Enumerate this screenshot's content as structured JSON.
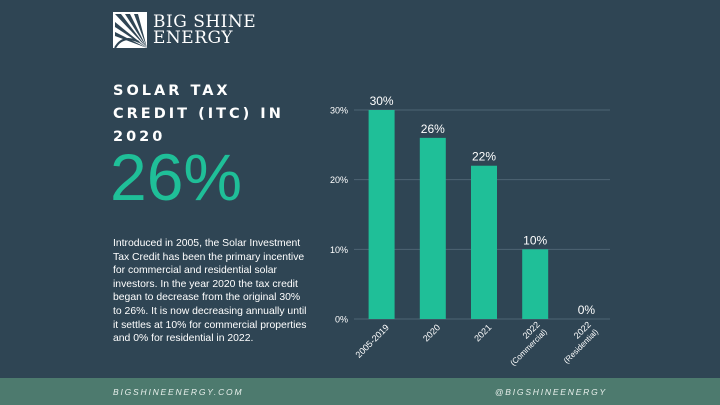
{
  "brand": {
    "line1": "BIG SHINE",
    "line2": "ENERGY",
    "logo_icon": "sunburst-icon"
  },
  "title": "SOLAR TAX CREDIT (ITC) IN 2020",
  "headline_value": "26%",
  "description": "Introduced in 2005, the Solar Investment Tax Credit has been the primary incentive for commercial and residential solar investors. In the year 2020 the tax credit began to decrease from the original 30% to 26%. It is now decreasing annually until it settles at 10% for commercial properties and 0% for residential in 2022.",
  "footer": {
    "website": "BIGSHINEENERGY.COM",
    "handle": "@BIGSHINEENERGY"
  },
  "colors": {
    "background": "#2f4554",
    "accent": "#1fbf98",
    "footer": "#4d7a6e"
  },
  "chart_data": {
    "type": "bar",
    "categories": [
      "2005-2019",
      "2020",
      "2021",
      "2022 (Commercial)",
      "2022 (Residential)"
    ],
    "category_lines": [
      [
        "2005-2019"
      ],
      [
        "2020"
      ],
      [
        "2021"
      ],
      [
        "2022",
        "(Commercial)"
      ],
      [
        "2022",
        "(Residential)"
      ]
    ],
    "values": [
      30,
      26,
      22,
      10,
      0
    ],
    "data_labels": [
      "30%",
      "26%",
      "22%",
      "10%",
      "0%"
    ],
    "ylim": [
      0,
      30
    ],
    "yticks": [
      0,
      10,
      20,
      30
    ],
    "ytick_labels": [
      "0%",
      "10%",
      "20%",
      "30%"
    ],
    "grid": true,
    "bar_color": "#1fbf98",
    "title": "",
    "xlabel": "",
    "ylabel": ""
  }
}
